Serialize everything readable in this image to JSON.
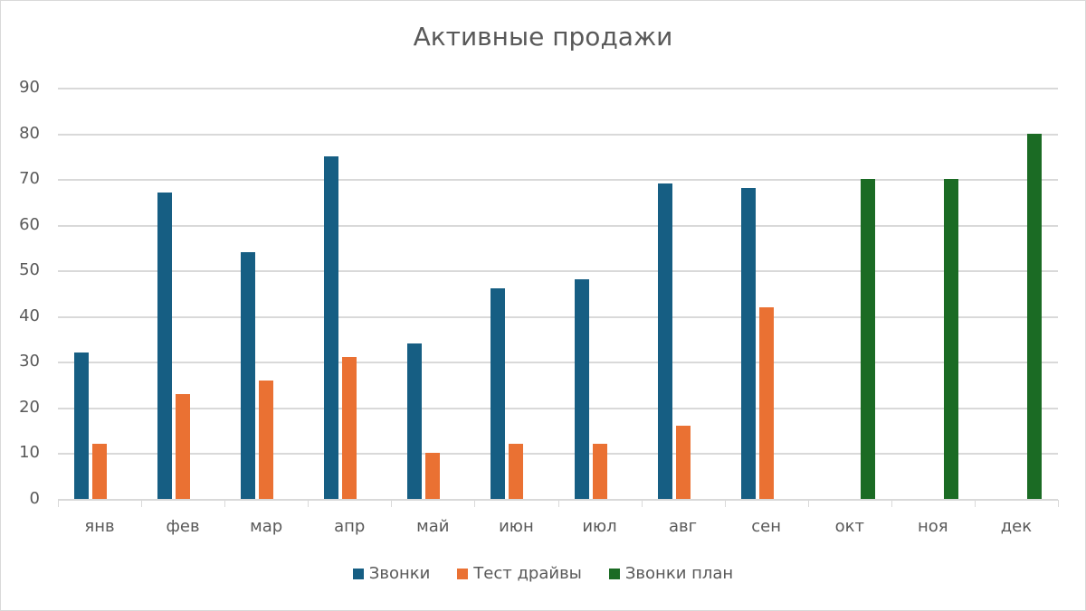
{
  "chart_data": {
    "type": "bar",
    "title": "Активные продажи",
    "xlabel": "",
    "ylabel": "",
    "ylim": [
      0,
      90
    ],
    "yticks": [
      0,
      10,
      20,
      30,
      40,
      50,
      60,
      70,
      80,
      90
    ],
    "grid": true,
    "legend_position": "bottom",
    "categories": [
      "янв",
      "фев",
      "мар",
      "апр",
      "май",
      "июн",
      "июл",
      "авг",
      "сен",
      "окт",
      "ноя",
      "дек"
    ],
    "series": [
      {
        "name": "Звонки",
        "color": "#165e83",
        "values": [
          32,
          67,
          54,
          75,
          34,
          46,
          48,
          69,
          68,
          null,
          null,
          null
        ]
      },
      {
        "name": "Тест драйвы",
        "color": "#ea7133",
        "values": [
          12,
          23,
          26,
          31,
          10,
          12,
          12,
          16,
          42,
          null,
          null,
          null
        ]
      },
      {
        "name": "Звонки план",
        "color": "#1b6b24",
        "values": [
          null,
          null,
          null,
          null,
          null,
          null,
          null,
          null,
          null,
          70,
          70,
          80
        ]
      }
    ]
  }
}
